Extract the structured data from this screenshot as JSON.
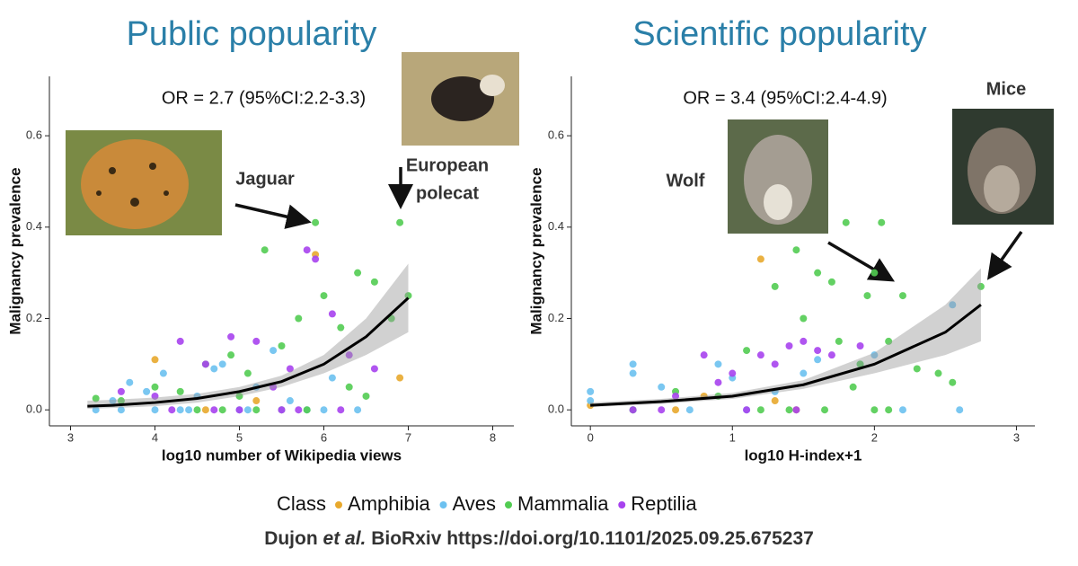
{
  "chart_data": [
    {
      "type": "scatter",
      "title": "Public popularity",
      "annotation": "OR = 2.7 (95%CI:2.2-3.3)",
      "x_label": "log10 number of Wikipedia views",
      "y_label": "Malignancy prevalence",
      "xlim": [
        2.75,
        8.25
      ],
      "ylim": [
        -0.035,
        0.73
      ],
      "xticks": [
        3,
        4,
        5,
        6,
        7,
        8
      ],
      "yticks": [
        {
          "value": 0,
          "label": "0.0"
        },
        0.2,
        0.4,
        0.6
      ],
      "series": [
        {
          "name": "Amphibia",
          "color": "#e8a92d",
          "x": [
            4.0,
            5.2,
            5.9,
            6.9,
            5.5,
            4.6
          ],
          "values": [
            0.11,
            0.02,
            0.34,
            0.07,
            0.0,
            0.0
          ]
        },
        {
          "name": "Aves",
          "color": "#6cc1f0",
          "x": [
            3.3,
            3.5,
            3.7,
            3.9,
            4.1,
            4.3,
            4.5,
            4.8,
            5.0,
            5.2,
            5.4,
            5.6,
            5.8,
            6.1,
            6.4,
            3.6,
            4.0,
            4.4,
            5.1,
            5.5,
            6.0,
            4.7
          ],
          "values": [
            0.0,
            0.02,
            0.06,
            0.04,
            0.08,
            0.0,
            0.03,
            0.1,
            0.0,
            0.05,
            0.13,
            0.02,
            0.0,
            0.07,
            0.0,
            0.0,
            0.0,
            0.0,
            0.0,
            0.0,
            0.0,
            0.09
          ]
        },
        {
          "name": "Mammalia",
          "color": "#52cc52",
          "x": [
            3.3,
            3.6,
            4.0,
            4.3,
            4.6,
            4.9,
            5.1,
            5.3,
            5.5,
            5.7,
            5.9,
            6.0,
            6.2,
            6.4,
            6.6,
            6.8,
            7.0,
            6.9,
            5.2,
            4.8,
            5.8,
            6.3,
            6.5,
            5.0,
            4.5
          ],
          "values": [
            0.025,
            0.02,
            0.05,
            0.04,
            0.1,
            0.12,
            0.08,
            0.35,
            0.14,
            0.2,
            0.41,
            0.25,
            0.18,
            0.3,
            0.28,
            0.2,
            0.25,
            0.41,
            0.0,
            0.0,
            0.0,
            0.05,
            0.03,
            0.03,
            0.0
          ]
        },
        {
          "name": "Reptilia",
          "color": "#a742ee",
          "x": [
            3.6,
            4.0,
            4.3,
            4.6,
            4.9,
            5.2,
            5.4,
            5.6,
            5.8,
            5.9,
            6.1,
            6.3,
            6.6,
            4.2,
            5.0,
            5.5,
            6.2,
            4.7,
            5.7
          ],
          "values": [
            0.04,
            0.03,
            0.15,
            0.1,
            0.16,
            0.15,
            0.05,
            0.09,
            0.35,
            0.33,
            0.21,
            0.12,
            0.09,
            0.0,
            0.0,
            0.0,
            0.0,
            0.0,
            0.0
          ]
        }
      ],
      "fit": {
        "x": [
          3.2,
          3.5,
          4,
          4.5,
          5,
          5.5,
          6,
          6.5,
          7
        ],
        "values": [
          0.008,
          0.01,
          0.016,
          0.025,
          0.04,
          0.062,
          0.1,
          0.16,
          0.245
        ],
        "lower": [
          0.002,
          0.004,
          0.008,
          0.016,
          0.03,
          0.05,
          0.08,
          0.12,
          0.17
        ],
        "upper": [
          0.02,
          0.022,
          0.027,
          0.035,
          0.05,
          0.075,
          0.12,
          0.2,
          0.32
        ]
      },
      "callouts": [
        {
          "label_lines": [
            "Jaguar"
          ]
        },
        {
          "label_lines": [
            "European",
            "polecat"
          ]
        }
      ]
    },
    {
      "type": "scatter",
      "title": "Scientific popularity",
      "annotation": "OR = 3.4 (95%CI:2.4-4.9)",
      "x_label": "log10 H-index+1",
      "y_label": "Malignancy prevalence",
      "xlim": [
        -0.134,
        3.13
      ],
      "ylim": [
        -0.035,
        0.73
      ],
      "xticks": [
        0,
        1,
        2,
        3
      ],
      "yticks": [
        {
          "value": 0,
          "label": "0.0"
        },
        0.2,
        0.4,
        0.6
      ],
      "series": [
        {
          "name": "Amphibia",
          "color": "#e8a92d",
          "x": [
            0.0,
            0.6,
            0.8,
            1.2,
            1.45,
            1.3
          ],
          "values": [
            0.01,
            0.0,
            0.03,
            0.33,
            0.0,
            0.02
          ]
        },
        {
          "name": "Aves",
          "color": "#6cc1f0",
          "x": [
            0,
            0,
            0.3,
            0.3,
            0.3,
            0.5,
            0.9,
            1.0,
            1.3,
            1.5,
            1.6,
            1.9,
            2.0,
            2.2,
            2.55,
            2.6,
            0.7,
            1.1
          ],
          "values": [
            0.04,
            0.02,
            0.1,
            0.08,
            0.0,
            0.05,
            0.1,
            0.07,
            0.04,
            0.08,
            0.11,
            0.1,
            0.12,
            0.0,
            0.23,
            0.0,
            0.0,
            0.0
          ]
        },
        {
          "name": "Mammalia",
          "color": "#52cc52",
          "x": [
            0.3,
            0.6,
            0.9,
            1.1,
            1.3,
            1.45,
            1.5,
            1.6,
            1.7,
            1.75,
            1.8,
            1.9,
            1.95,
            2.0,
            2.05,
            2.1,
            2.2,
            2.3,
            2.45,
            2.55,
            2.75,
            1.85,
            2.0,
            2.1,
            1.2,
            1.4,
            1.65
          ],
          "values": [
            0.0,
            0.04,
            0.03,
            0.13,
            0.27,
            0.35,
            0.2,
            0.3,
            0.28,
            0.15,
            0.41,
            0.1,
            0.25,
            0.3,
            0.41,
            0.15,
            0.25,
            0.09,
            0.08,
            0.06,
            0.27,
            0.05,
            0.0,
            0.0,
            0.0,
            0.0,
            0.0
          ]
        },
        {
          "name": "Reptilia",
          "color": "#a742ee",
          "x": [
            0.3,
            0.6,
            0.8,
            0.9,
            1.0,
            1.2,
            1.3,
            1.4,
            1.5,
            1.6,
            1.7,
            1.9,
            0.5,
            1.1,
            1.45
          ],
          "values": [
            0.0,
            0.03,
            0.12,
            0.06,
            0.08,
            0.12,
            0.1,
            0.14,
            0.15,
            0.13,
            0.12,
            0.14,
            0.0,
            0.0,
            0.0
          ]
        }
      ],
      "fit": {
        "x": [
          0,
          0.5,
          1,
          1.5,
          2,
          2.5,
          2.75
        ],
        "values": [
          0.01,
          0.018,
          0.03,
          0.055,
          0.1,
          0.17,
          0.23
        ],
        "lower": [
          0.006,
          0.013,
          0.024,
          0.046,
          0.08,
          0.12,
          0.15
        ],
        "upper": [
          0.016,
          0.024,
          0.037,
          0.065,
          0.125,
          0.23,
          0.31
        ]
      },
      "callouts": [
        {
          "label_lines": [
            "Wolf"
          ]
        },
        {
          "label_lines": [
            "Mice"
          ]
        }
      ]
    }
  ],
  "legend": {
    "title": "Class"
  },
  "footer": [
    "Dujon ",
    "et al.",
    " BioRxiv https://doi.org/10.1101/2025.09.25.675237"
  ]
}
